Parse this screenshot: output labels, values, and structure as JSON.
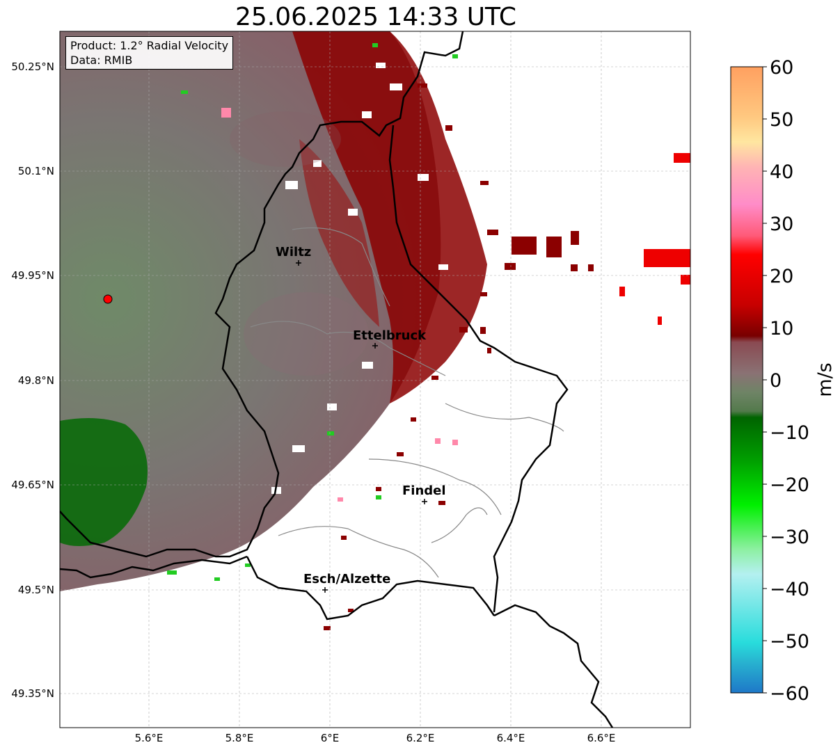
{
  "title": "25.06.2025 14:33 UTC",
  "info": {
    "product": "Product: 1.2° Radial Velocity",
    "source": "Data: RMIB"
  },
  "lat_ticks": [
    "50.25°N",
    "50.1°N",
    "49.95°N",
    "49.8°N",
    "49.65°N",
    "49.5°N",
    "49.35°N"
  ],
  "lon_ticks": [
    "5.6°E",
    "5.8°E",
    "6°E",
    "6.2°E",
    "6.4°E",
    "6.6°E"
  ],
  "cities": [
    {
      "name": "Wiltz"
    },
    {
      "name": "Ettelbruck"
    },
    {
      "name": "Findel"
    },
    {
      "name": "Esch/Alzette"
    }
  ],
  "colorbar": {
    "ticks": [
      "60",
      "50",
      "40",
      "30",
      "20",
      "10",
      "0",
      "−10",
      "−20",
      "−30",
      "−40",
      "−50",
      "−60"
    ],
    "unit": "m/s",
    "range": [
      -60,
      60
    ]
  },
  "colors": {
    "approaching_strong": "#00cc00",
    "approaching_weak": "#5f7d5a",
    "receding_weak": "#866068",
    "receding_strong": "#8b0000",
    "radar_site": "#ff0000"
  }
}
